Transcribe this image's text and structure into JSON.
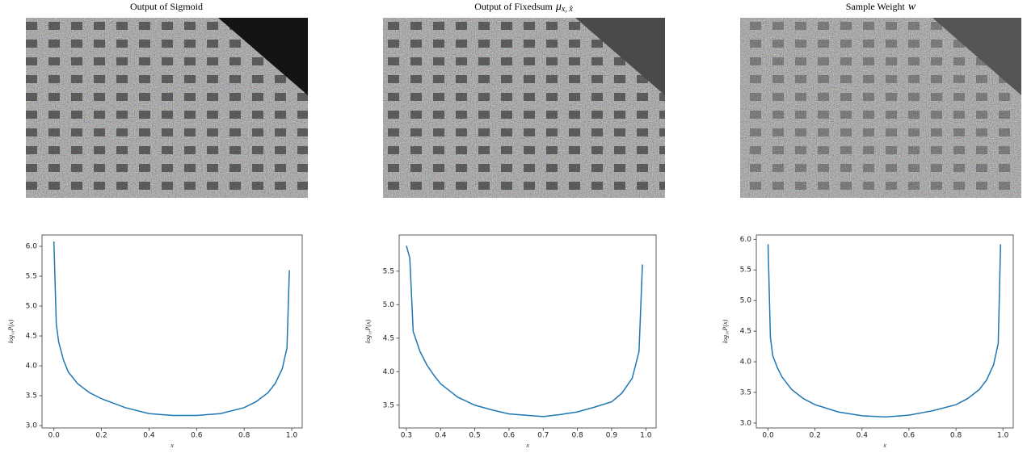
{
  "chart_data": [
    {
      "type": "line",
      "title": "Output of Sigmoid",
      "xlabel": "x",
      "ylabel": "log₁₀P(x)",
      "x": [
        0.0,
        0.01,
        0.02,
        0.04,
        0.06,
        0.1,
        0.15,
        0.2,
        0.3,
        0.4,
        0.5,
        0.6,
        0.7,
        0.8,
        0.85,
        0.9,
        0.93,
        0.96,
        0.98,
        0.99
      ],
      "values": [
        6.08,
        4.7,
        4.4,
        4.1,
        3.9,
        3.7,
        3.55,
        3.45,
        3.3,
        3.2,
        3.17,
        3.17,
        3.2,
        3.3,
        3.4,
        3.55,
        3.7,
        3.95,
        4.3,
        5.6
      ],
      "color": "#1f77b4",
      "xlim": [
        -0.05,
        1.044
      ],
      "ylim": [
        2.96,
        6.19
      ],
      "xticks": [
        {
          "value": 0.0,
          "label": "0.0"
        },
        0.2,
        0.4,
        0.6,
        0.8,
        {
          "value": 1.0,
          "label": "1.0"
        }
      ],
      "yticks": [
        {
          "value": 3.0,
          "label": "3.0"
        },
        3.5,
        {
          "value": 4.0,
          "label": "4.0"
        },
        4.5,
        {
          "value": 5.0,
          "label": "5.0"
        },
        5.5,
        {
          "value": 6.0,
          "label": "6.0"
        }
      ]
    },
    {
      "type": "line",
      "title": "Output of Fixedsum",
      "symbol": "μ",
      "subscript": "x, x̂",
      "xlabel": "x",
      "ylabel": "log₁₀P(x)",
      "x": [
        0.3,
        0.31,
        0.32,
        0.34,
        0.36,
        0.38,
        0.4,
        0.43,
        0.45,
        0.5,
        0.55,
        0.6,
        0.65,
        0.7,
        0.75,
        0.8,
        0.85,
        0.9,
        0.93,
        0.96,
        0.98,
        0.99
      ],
      "values": [
        5.88,
        5.7,
        4.6,
        4.3,
        4.1,
        3.95,
        3.82,
        3.7,
        3.62,
        3.5,
        3.43,
        3.37,
        3.35,
        3.33,
        3.36,
        3.4,
        3.47,
        3.55,
        3.68,
        3.9,
        4.3,
        5.6
      ],
      "color": "#1f77b4",
      "xlim": [
        0.279,
        1.03
      ],
      "ylim": [
        3.16,
        6.04
      ],
      "xticks": [
        0.3,
        0.4,
        0.5,
        0.6,
        0.7,
        0.8,
        0.9,
        {
          "value": 1.0,
          "label": "1.0"
        }
      ],
      "yticks": [
        3.5,
        {
          "value": 4.0,
          "label": "4.0"
        },
        4.5,
        {
          "value": 5.0,
          "label": "5.0"
        },
        5.5
      ]
    },
    {
      "type": "line",
      "title": "Sample Weight",
      "symbol": "w",
      "xlabel": "x",
      "ylabel": "log₁₀P(x)",
      "x": [
        0.0,
        0.01,
        0.02,
        0.04,
        0.06,
        0.1,
        0.15,
        0.2,
        0.3,
        0.4,
        0.5,
        0.6,
        0.7,
        0.8,
        0.85,
        0.9,
        0.93,
        0.96,
        0.98,
        0.99
      ],
      "values": [
        5.92,
        4.4,
        4.1,
        3.9,
        3.75,
        3.55,
        3.4,
        3.3,
        3.18,
        3.12,
        3.1,
        3.13,
        3.2,
        3.3,
        3.4,
        3.55,
        3.7,
        3.95,
        4.3,
        5.92
      ],
      "color": "#1f77b4",
      "xlim": [
        -0.05,
        1.044
      ],
      "ylim": [
        2.92,
        6.07
      ],
      "xticks": [
        {
          "value": 0.0,
          "label": "0.0"
        },
        0.2,
        0.4,
        0.6,
        0.8,
        {
          "value": 1.0,
          "label": "1.0"
        }
      ],
      "yticks": [
        {
          "value": 3.0,
          "label": "3.0"
        },
        3.5,
        {
          "value": 4.0,
          "label": "4.0"
        },
        4.5,
        {
          "value": 5.0,
          "label": "5.0"
        },
        5.5,
        {
          "value": 6.0,
          "label": "6.0"
        }
      ]
    }
  ]
}
